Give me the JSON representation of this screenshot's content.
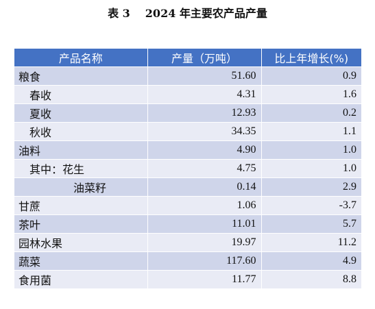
{
  "table": {
    "caption_number": "表 3",
    "caption_title": "2024 年主要农产品产量",
    "headers": [
      "产品名称",
      "产量（万吨）",
      "比上年增长(%)"
    ],
    "rows": [
      {
        "name": "粮食",
        "output": "51.60",
        "growth": "0.9"
      },
      {
        "name": "春收",
        "output": "4.31",
        "growth": "1.6"
      },
      {
        "name": "夏收",
        "output": "12.93",
        "growth": "0.2"
      },
      {
        "name": "秋收",
        "output": "34.35",
        "growth": "1.1"
      },
      {
        "name": "油料",
        "output": "4.90",
        "growth": "1.0"
      },
      {
        "name": "其中：花生",
        "output": "4.75",
        "growth": "1.0"
      },
      {
        "name": "油菜籽",
        "output": "0.14",
        "growth": "2.9"
      },
      {
        "name": "甘蔗",
        "output": "1.06",
        "growth": "-3.7"
      },
      {
        "name": "茶叶",
        "output": "11.01",
        "growth": "5.7"
      },
      {
        "name": "园林水果",
        "output": "19.97",
        "growth": "11.2"
      },
      {
        "name": "蔬菜",
        "output": "117.60",
        "growth": "4.9"
      },
      {
        "name": "食用菌",
        "output": "11.77",
        "growth": "8.8"
      }
    ]
  },
  "colors": {
    "header_background": "#4472c4",
    "row_band_dark": "#cfd5ea",
    "row_band_light": "#e9ebf5"
  }
}
